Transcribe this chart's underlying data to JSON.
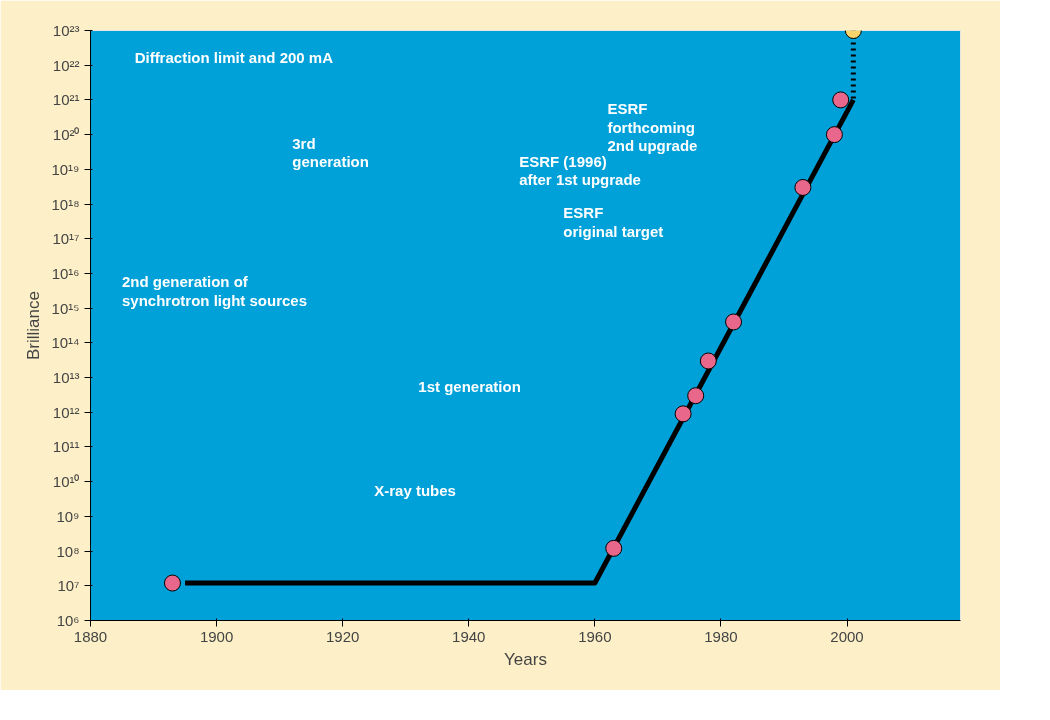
{
  "chart_data": {
    "type": "scatter",
    "xlabel": "Years",
    "ylabel": "Brilliance",
    "log": "y",
    "xlim": [
      1880,
      2018
    ],
    "xticks": [
      1880,
      1900,
      1920,
      1940,
      1960,
      1980,
      2000
    ],
    "ylim": [
      1000000.0,
      1e+23
    ],
    "yticks": [
      {
        "value": 1000000.0,
        "label": "10⁶"
      },
      {
        "value": 10000000.0,
        "label": "10⁷"
      },
      {
        "value": 100000000.0,
        "label": "10⁸"
      },
      {
        "value": 1000000000.0,
        "label": "10⁹"
      },
      {
        "value": 10000000000.0,
        "label": "10¹⁰"
      },
      {
        "value": 100000000000.0,
        "label": "10¹¹"
      },
      {
        "value": 1000000000000.0,
        "label": "10¹²"
      },
      {
        "value": 10000000000000.0,
        "label": "10¹³"
      },
      {
        "value": 100000000000000.0,
        "label": "10¹⁴"
      },
      {
        "value": 1000000000000000.0,
        "label": "10¹⁵"
      },
      {
        "value": 1e+16,
        "label": "10¹⁶"
      },
      {
        "value": 1e+17,
        "label": "10¹⁷"
      },
      {
        "value": 1e+18,
        "label": "10¹⁸"
      },
      {
        "value": 1e+19,
        "label": "10¹⁹"
      },
      {
        "value": 1e+20,
        "label": "10²⁰"
      },
      {
        "value": 1e+21,
        "label": "10²¹"
      },
      {
        "value": 1e+22,
        "label": "10²²"
      },
      {
        "value": 1e+23,
        "label": "10²³"
      }
    ],
    "grid": false,
    "series": [
      {
        "type": "line",
        "marker": "none",
        "color": "#000000",
        "line_style": "solid",
        "x": [
          2001,
          1960,
          1895
        ],
        "values": [
          1e+21,
          12000000.0,
          12000000.0
        ]
      },
      {
        "type": "line",
        "marker": "none",
        "color": "#000000",
        "line_style": "dotted",
        "x": [
          2001,
          2001
        ],
        "values": [
          1e+23,
          1e+21
        ]
      },
      {
        "marker": "circle",
        "color": "#e8678a",
        "x": [
          1999,
          1998,
          1993,
          1982,
          1978,
          1976,
          1974,
          1963,
          1893
        ],
        "values": [
          1e+21,
          1e+20,
          3e+18,
          400000000000000.0,
          30000000000000.0,
          3000000000000.0,
          900000000000.0,
          120000000.0,
          12000000.0
        ]
      },
      {
        "marker": "circle",
        "color": "#f5d56b",
        "x": [
          2001
        ],
        "values": [
          1e+23
        ]
      }
    ],
    "annotations": [
      "Diffraction limit and 200 mA",
      "ESRF\nforthcoming\n2nd upgrade",
      "ESRF (1996)\nafter 1st upgrade",
      "ESRF\noriginal target",
      "3rd\ngeneration",
      "2nd generation of\nsynchrotron light sources",
      "1st generation",
      "X-ray tubes"
    ]
  }
}
